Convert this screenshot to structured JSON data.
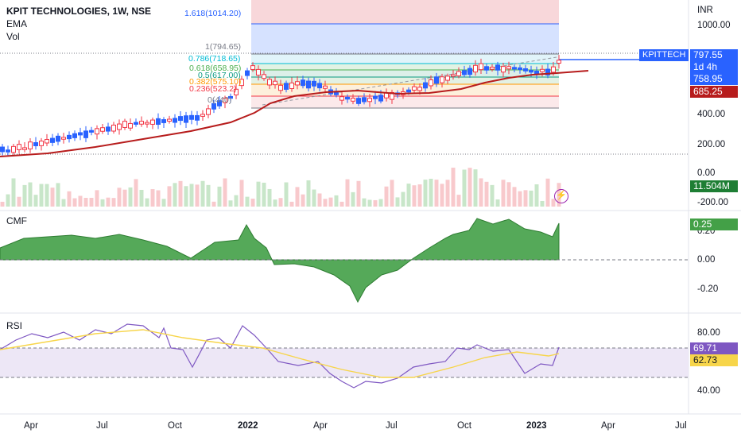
{
  "header": {
    "title": "KPIT TECHNOLOGIES, 1W, NSE",
    "indicators": [
      "EMA",
      "Vol"
    ]
  },
  "currency": "INR",
  "price_axis": [
    "1000.00",
    "400.00",
    "200.00",
    "0.00",
    "-200.00"
  ],
  "cmf_axis": [
    "0.20",
    "0.00",
    "-0.20"
  ],
  "rsi_axis": [
    "80.00",
    "40.00"
  ],
  "time_axis": [
    "Apr",
    "Jul",
    "Oct",
    "2022",
    "Apr",
    "Jul",
    "Oct",
    "2023",
    "Apr",
    "Jul"
  ],
  "fib_levels": [
    {
      "label": "1.618(1014.20)",
      "color": "#2962ff"
    },
    {
      "label": "1(794.65)",
      "color": "#787b86"
    },
    {
      "label": "0.786(718.65)",
      "color": "#00bcd4"
    },
    {
      "label": "0.618(658.95)",
      "color": "#4caf50"
    },
    {
      "label": "0.5(617.00)",
      "color": "#089981"
    },
    {
      "label": "0.382(575.10)",
      "color": "#ff9800"
    },
    {
      "label": "0.236(523.2)",
      "color": "#f23645"
    },
    {
      "label": "0(440)",
      "color": "#787b86"
    }
  ],
  "price_tags": {
    "symbol": "KPITTECH",
    "last": "797.55",
    "countdown": "1d 4h",
    "ema_high": "758.95",
    "ema": "685.25",
    "volume": "11.504M",
    "cmf": "0.25",
    "rsi": "69.71",
    "rsi_ma": "62.73"
  },
  "panes": {
    "cmf_label": "CMF",
    "rsi_label": "RSI"
  },
  "colors": {
    "up": "#2962ff",
    "down": "#f23645",
    "ema": "#b71c1c",
    "cmf_fill": "#43a047",
    "rsi_line": "#7e57c2",
    "rsi_ma": "#f7d54a"
  },
  "icons": [
    "lightning-icon"
  ]
}
